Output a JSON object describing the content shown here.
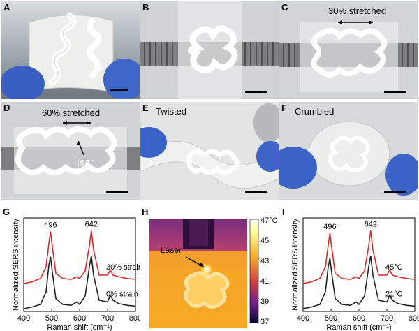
{
  "panels": {
    "A": {
      "label": "A"
    },
    "B": {
      "label": "B"
    },
    "C": {
      "label": "C",
      "text": "30% stretched"
    },
    "D": {
      "label": "D",
      "text": "60% stretched",
      "annotation": "Tear"
    },
    "E": {
      "label": "E",
      "text": "Twisted"
    },
    "F": {
      "label": "F",
      "text": "Crumbled"
    },
    "G": {
      "label": "G"
    },
    "H": {
      "label": "H",
      "annotation": "Laser"
    },
    "I": {
      "label": "I"
    }
  },
  "colorbar": {
    "ticks": [
      "47°C",
      "45",
      "43",
      "41",
      "39",
      "37"
    ]
  },
  "chart_data": [
    {
      "panel": "G",
      "type": "line",
      "xlabel": "Raman shift (cm⁻¹)",
      "ylabel": "Normalized SERS intensity",
      "xlim": [
        400,
        800
      ],
      "x_ticks": [
        "400",
        "500",
        "600",
        "700",
        "800"
      ],
      "peak_labels": [
        "496",
        "642"
      ],
      "series": [
        {
          "name": "30% strain",
          "color": "#e0262a",
          "x": [
            400,
            430,
            460,
            480,
            490,
            496,
            502,
            515,
            540,
            570,
            590,
            600,
            620,
            635,
            642,
            650,
            670,
            700,
            710,
            720,
            740,
            770,
            800
          ],
          "y": [
            0.3,
            0.32,
            0.36,
            0.5,
            0.78,
            0.92,
            0.75,
            0.42,
            0.36,
            0.35,
            0.38,
            0.36,
            0.45,
            0.75,
            0.93,
            0.7,
            0.4,
            0.4,
            0.46,
            0.4,
            0.38,
            0.36,
            0.35
          ]
        },
        {
          "name": "0% strain",
          "color": "#222222",
          "x": [
            400,
            430,
            460,
            480,
            490,
            496,
            502,
            515,
            540,
            570,
            590,
            600,
            620,
            635,
            642,
            650,
            670,
            700,
            710,
            720,
            740,
            770,
            800
          ],
          "y": [
            0.0,
            0.02,
            0.05,
            0.2,
            0.52,
            0.62,
            0.45,
            0.12,
            0.05,
            0.04,
            0.08,
            0.05,
            0.15,
            0.5,
            0.63,
            0.4,
            0.1,
            0.08,
            0.16,
            0.1,
            0.06,
            0.04,
            0.03
          ]
        }
      ]
    },
    {
      "panel": "I",
      "type": "line",
      "xlabel": "Raman shift (cm⁻¹)",
      "ylabel": "Normalized SERS intensity",
      "xlim": [
        400,
        800
      ],
      "x_ticks": [
        "400",
        "500",
        "600",
        "700",
        "800"
      ],
      "peak_labels": [
        "496",
        "642"
      ],
      "series": [
        {
          "name": "45°C",
          "color": "#e0262a",
          "x": [
            400,
            430,
            460,
            480,
            490,
            496,
            502,
            515,
            540,
            570,
            590,
            600,
            620,
            635,
            642,
            650,
            670,
            700,
            710,
            720,
            740,
            770,
            800
          ],
          "y": [
            0.3,
            0.32,
            0.36,
            0.5,
            0.76,
            0.9,
            0.74,
            0.42,
            0.36,
            0.35,
            0.38,
            0.36,
            0.45,
            0.75,
            0.93,
            0.7,
            0.4,
            0.4,
            0.46,
            0.4,
            0.38,
            0.36,
            0.35
          ]
        },
        {
          "name": "21°C",
          "color": "#222222",
          "x": [
            400,
            430,
            460,
            480,
            490,
            496,
            502,
            515,
            540,
            570,
            590,
            600,
            620,
            635,
            642,
            650,
            670,
            700,
            710,
            720,
            740,
            770,
            800
          ],
          "y": [
            0.0,
            0.02,
            0.05,
            0.2,
            0.5,
            0.6,
            0.44,
            0.12,
            0.05,
            0.04,
            0.08,
            0.05,
            0.15,
            0.5,
            0.63,
            0.4,
            0.1,
            0.08,
            0.16,
            0.1,
            0.06,
            0.04,
            0.03
          ]
        }
      ]
    }
  ]
}
